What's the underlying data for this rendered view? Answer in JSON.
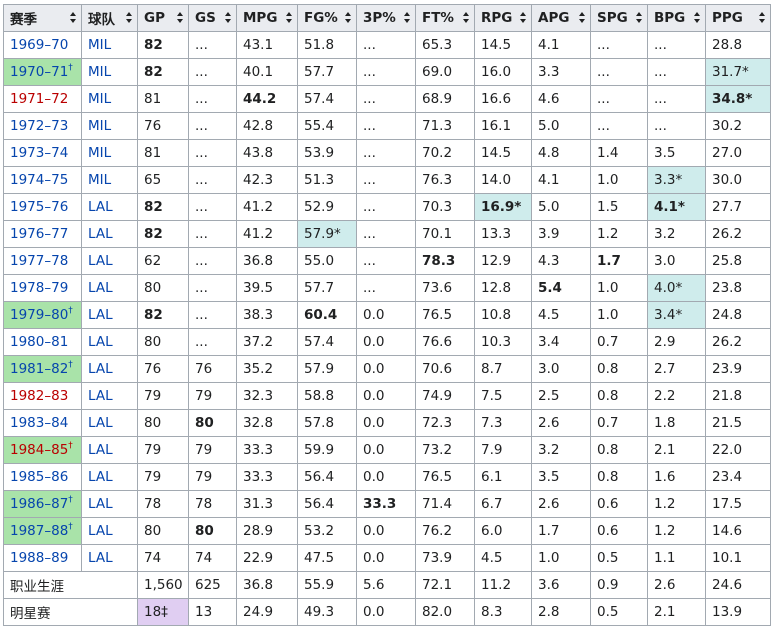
{
  "headers": [
    "赛季",
    "球队",
    "GP",
    "GS",
    "MPG",
    "FG%",
    "3P%",
    "FT%",
    "RPG",
    "APG",
    "SPG",
    "BPG",
    "PPG"
  ],
  "rows": [
    {
      "season": "1969–70",
      "dagger": "",
      "team": "MIL",
      "gp": "82",
      "gs": "...",
      "mpg": "43.1",
      "fg": "51.8",
      "tp": "...",
      "ft": "65.3",
      "rpg": "14.5",
      "apg": "4.1",
      "spg": "...",
      "bpg": "...",
      "ppg": "28.8"
    },
    {
      "season": "1970–71",
      "dagger": "†",
      "team": "MIL",
      "gp": "82",
      "gs": "...",
      "mpg": "40.1",
      "fg": "57.7",
      "tp": "...",
      "ft": "69.0",
      "rpg": "16.0",
      "apg": "3.3",
      "spg": "...",
      "bpg": "...",
      "ppg": "31.7*"
    },
    {
      "season": "1971–72",
      "dagger": "",
      "team": "MIL",
      "gp": "81",
      "gs": "...",
      "mpg": "44.2",
      "fg": "57.4",
      "tp": "...",
      "ft": "68.9",
      "rpg": "16.6",
      "apg": "4.6",
      "spg": "...",
      "bpg": "...",
      "ppg": "34.8*"
    },
    {
      "season": "1972–73",
      "dagger": "",
      "team": "MIL",
      "gp": "76",
      "gs": "...",
      "mpg": "42.8",
      "fg": "55.4",
      "tp": "...",
      "ft": "71.3",
      "rpg": "16.1",
      "apg": "5.0",
      "spg": "...",
      "bpg": "...",
      "ppg": "30.2"
    },
    {
      "season": "1973–74",
      "dagger": "",
      "team": "MIL",
      "gp": "81",
      "gs": "...",
      "mpg": "43.8",
      "fg": "53.9",
      "tp": "...",
      "ft": "70.2",
      "rpg": "14.5",
      "apg": "4.8",
      "spg": "1.4",
      "bpg": "3.5",
      "ppg": "27.0"
    },
    {
      "season": "1974–75",
      "dagger": "",
      "team": "MIL",
      "gp": "65",
      "gs": "...",
      "mpg": "42.3",
      "fg": "51.3",
      "tp": "...",
      "ft": "76.3",
      "rpg": "14.0",
      "apg": "4.1",
      "spg": "1.0",
      "bpg": "3.3*",
      "ppg": "30.0"
    },
    {
      "season": "1975–76",
      "dagger": "",
      "team": "LAL",
      "gp": "82",
      "gs": "...",
      "mpg": "41.2",
      "fg": "52.9",
      "tp": "...",
      "ft": "70.3",
      "rpg": "16.9*",
      "apg": "5.0",
      "spg": "1.5",
      "bpg": "4.1*",
      "ppg": "27.7"
    },
    {
      "season": "1976–77",
      "dagger": "",
      "team": "LAL",
      "gp": "82",
      "gs": "...",
      "mpg": "41.2",
      "fg": "57.9*",
      "tp": "...",
      "ft": "70.1",
      "rpg": "13.3",
      "apg": "3.9",
      "spg": "1.2",
      "bpg": "3.2",
      "ppg": "26.2"
    },
    {
      "season": "1977–78",
      "dagger": "",
      "team": "LAL",
      "gp": "62",
      "gs": "...",
      "mpg": "36.8",
      "fg": "55.0",
      "tp": "...",
      "ft": "78.3",
      "rpg": "12.9",
      "apg": "4.3",
      "spg": "1.7",
      "bpg": "3.0",
      "ppg": "25.8"
    },
    {
      "season": "1978–79",
      "dagger": "",
      "team": "LAL",
      "gp": "80",
      "gs": "...",
      "mpg": "39.5",
      "fg": "57.7",
      "tp": "...",
      "ft": "73.6",
      "rpg": "12.8",
      "apg": "5.4",
      "spg": "1.0",
      "bpg": "4.0*",
      "ppg": "23.8"
    },
    {
      "season": "1979–80",
      "dagger": "†",
      "team": "LAL",
      "gp": "82",
      "gs": "...",
      "mpg": "38.3",
      "fg": "60.4",
      "tp": "0.0",
      "ft": "76.5",
      "rpg": "10.8",
      "apg": "4.5",
      "spg": "1.0",
      "bpg": "3.4*",
      "ppg": "24.8"
    },
    {
      "season": "1980–81",
      "dagger": "",
      "team": "LAL",
      "gp": "80",
      "gs": "...",
      "mpg": "37.2",
      "fg": "57.4",
      "tp": "0.0",
      "ft": "76.6",
      "rpg": "10.3",
      "apg": "3.4",
      "spg": "0.7",
      "bpg": "2.9",
      "ppg": "26.2"
    },
    {
      "season": "1981–82",
      "dagger": "†",
      "team": "LAL",
      "gp": "76",
      "gs": "76",
      "mpg": "35.2",
      "fg": "57.9",
      "tp": "0.0",
      "ft": "70.6",
      "rpg": "8.7",
      "apg": "3.0",
      "spg": "0.8",
      "bpg": "2.7",
      "ppg": "23.9"
    },
    {
      "season": "1982–83",
      "dagger": "",
      "team": "LAL",
      "gp": "79",
      "gs": "79",
      "mpg": "32.3",
      "fg": "58.8",
      "tp": "0.0",
      "ft": "74.9",
      "rpg": "7.5",
      "apg": "2.5",
      "spg": "0.8",
      "bpg": "2.2",
      "ppg": "21.8"
    },
    {
      "season": "1983–84",
      "dagger": "",
      "team": "LAL",
      "gp": "80",
      "gs": "80",
      "mpg": "32.8",
      "fg": "57.8",
      "tp": "0.0",
      "ft": "72.3",
      "rpg": "7.3",
      "apg": "2.6",
      "spg": "0.7",
      "bpg": "1.8",
      "ppg": "21.5"
    },
    {
      "season": "1984–85",
      "dagger": "†",
      "team": "LAL",
      "gp": "79",
      "gs": "79",
      "mpg": "33.3",
      "fg": "59.9",
      "tp": "0.0",
      "ft": "73.2",
      "rpg": "7.9",
      "apg": "3.2",
      "spg": "0.8",
      "bpg": "2.1",
      "ppg": "22.0"
    },
    {
      "season": "1985–86",
      "dagger": "",
      "team": "LAL",
      "gp": "79",
      "gs": "79",
      "mpg": "33.3",
      "fg": "56.4",
      "tp": "0.0",
      "ft": "76.5",
      "rpg": "6.1",
      "apg": "3.5",
      "spg": "0.8",
      "bpg": "1.6",
      "ppg": "23.4"
    },
    {
      "season": "1986–87",
      "dagger": "†",
      "team": "LAL",
      "gp": "78",
      "gs": "78",
      "mpg": "31.3",
      "fg": "56.4",
      "tp": "33.3",
      "ft": "71.4",
      "rpg": "6.7",
      "apg": "2.6",
      "spg": "0.6",
      "bpg": "1.2",
      "ppg": "17.5"
    },
    {
      "season": "1987–88",
      "dagger": "†",
      "team": "LAL",
      "gp": "80",
      "gs": "80",
      "mpg": "28.9",
      "fg": "53.2",
      "tp": "0.0",
      "ft": "76.2",
      "rpg": "6.0",
      "apg": "1.7",
      "spg": "0.6",
      "bpg": "1.2",
      "ppg": "14.6"
    },
    {
      "season": "1988–89",
      "dagger": "",
      "team": "LAL",
      "gp": "74",
      "gs": "74",
      "mpg": "22.9",
      "fg": "47.5",
      "tp": "0.0",
      "ft": "73.9",
      "rpg": "4.5",
      "apg": "1.0",
      "spg": "0.5",
      "bpg": "1.1",
      "ppg": "10.1"
    }
  ],
  "summary": [
    {
      "label": "职业生涯",
      "gp": "1,560",
      "gs": "625",
      "mpg": "36.8",
      "fg": "55.9",
      "tp": "5.6",
      "ft": "72.1",
      "rpg": "11.2",
      "apg": "3.6",
      "spg": "0.9",
      "bpg": "2.6",
      "ppg": "24.6"
    },
    {
      "label": "明星赛",
      "gp": "18‡",
      "gs": "13",
      "mpg": "24.9",
      "fg": "49.3",
      "tp": "0.0",
      "ft": "82.0",
      "rpg": "8.3",
      "apg": "2.8",
      "spg": "0.5",
      "bpg": "2.1",
      "ppg": "13.9"
    }
  ],
  "colors": {
    "link": "#0645ad",
    "red_link": "#ba0000",
    "champion_bg": "#a9e3a9",
    "league_lead_bg": "#cfecec",
    "allstar_record_bg": "#e0cef2",
    "header_bg": "#eaecf0",
    "border": "#a2a9b1"
  }
}
